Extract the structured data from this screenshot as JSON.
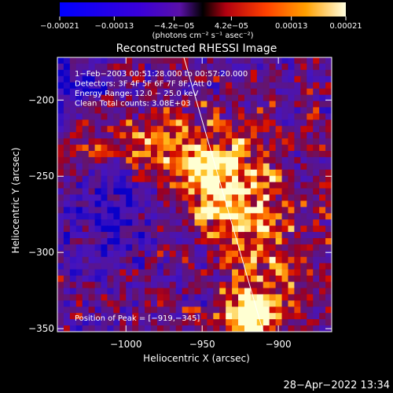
{
  "chart_data": {
    "type": "heatmap",
    "title": "Reconstructed RHESSI Image",
    "xlabel": "Heliocentric X (arcsec)",
    "ylabel": "Heliocentric Y (arcsec)",
    "xlim": [
      -1045,
      -865
    ],
    "ylim": [
      -352,
      -172
    ],
    "x_ticks": [
      {
        "value": -1000,
        "label": "−1000"
      },
      {
        "value": -950,
        "label": "−950"
      },
      {
        "value": -900,
        "label": "−900"
      }
    ],
    "y_ticks": [
      {
        "value": -200,
        "label": "−200"
      },
      {
        "value": -250,
        "label": "−250"
      },
      {
        "value": -300,
        "label": "−300"
      },
      {
        "value": -350,
        "label": "−350"
      }
    ],
    "colorbar": {
      "range": [
        -0.00021,
        0.00021
      ],
      "ticks": [
        {
          "value": -0.00021,
          "label": "−0.00021"
        },
        {
          "value": -0.00013,
          "label": "−0.00013"
        },
        {
          "value": -4.2e-05,
          "label": "−4.2e−05"
        },
        {
          "value": 4.2e-05,
          "label": "4.2e−05"
        },
        {
          "value": 0.00013,
          "label": "0.00013"
        },
        {
          "value": 0.00021,
          "label": "0.00021"
        }
      ],
      "unit_label": "(photons cm⁻² s⁻¹ asec⁻²)"
    },
    "annotations": [
      "1−Feb−2003 00:51:28.000 to 00:57:20.000",
      "Detectors: 3F 4F 5F 6F 7F 8F, Att 0",
      "Energy Range: 12.0 − 25.0 keV",
      "Clean    Total counts: 3.08E+03"
    ],
    "peak_label": "Position of Peak = [−919,−345]",
    "peak": [
      -919,
      -345
    ],
    "limb_line": [
      [
        -962,
        -172
      ],
      [
        -910,
        -352
      ]
    ],
    "colors": {
      "background": "#000000",
      "text": "#ffffff",
      "limb": "#ffffff"
    }
  },
  "footer": {
    "timestamp": "28−Apr−2022 13:34"
  }
}
